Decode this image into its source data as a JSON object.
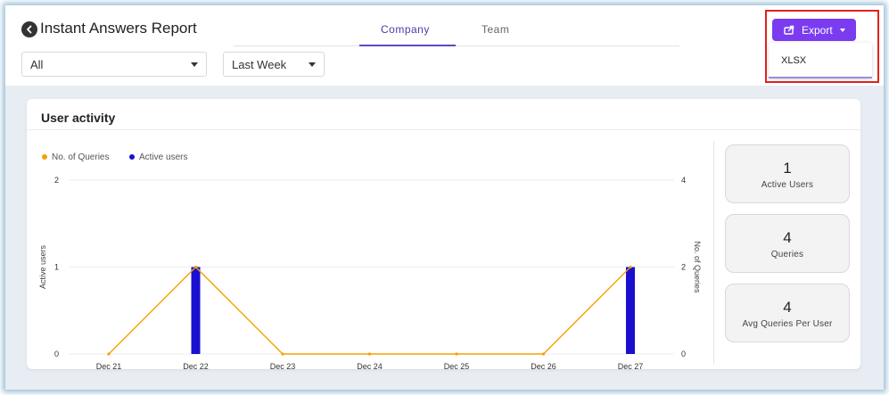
{
  "header": {
    "title": "Instant Answers Report",
    "tabs": [
      {
        "label": "Company",
        "active": true
      },
      {
        "label": "Team",
        "active": false
      }
    ],
    "filters": {
      "scope_value": "All",
      "period_value": "Last Week"
    },
    "export": {
      "label": "Export",
      "menu_items": [
        "XLSX"
      ]
    }
  },
  "card": {
    "title": "User activity"
  },
  "stats": [
    {
      "value": "1",
      "label": "Active Users"
    },
    {
      "value": "4",
      "label": "Queries"
    },
    {
      "value": "4",
      "label": "Avg Queries Per User"
    }
  ],
  "colors": {
    "accent": "#7b3cf0",
    "queries_line": "#f5a000",
    "active_users_bar": "#1a0ecf",
    "highlight_box": "#e0221a"
  },
  "chart_data": {
    "type": "bar",
    "legend": [
      "No. of Queries",
      "Active users"
    ],
    "categories": [
      "Dec 21",
      "Dec 22",
      "Dec 23",
      "Dec 24",
      "Dec 25",
      "Dec 26",
      "Dec 27"
    ],
    "series": [
      {
        "name": "Active users",
        "type": "bar",
        "axis": "left",
        "values": [
          0,
          1,
          0,
          0,
          0,
          0,
          1
        ]
      },
      {
        "name": "No. of Queries",
        "type": "line",
        "axis": "right",
        "values": [
          0,
          2,
          0,
          0,
          0,
          0,
          2
        ]
      }
    ],
    "ylabel": "Active users",
    "y2label": "No. of Queries",
    "ylim": [
      0,
      2
    ],
    "y2lim": [
      0,
      4
    ],
    "yticks": [
      "0",
      "1",
      "2"
    ],
    "y2ticks": [
      "0",
      "2",
      "4"
    ],
    "grid": true,
    "legend_position": "top-left"
  }
}
